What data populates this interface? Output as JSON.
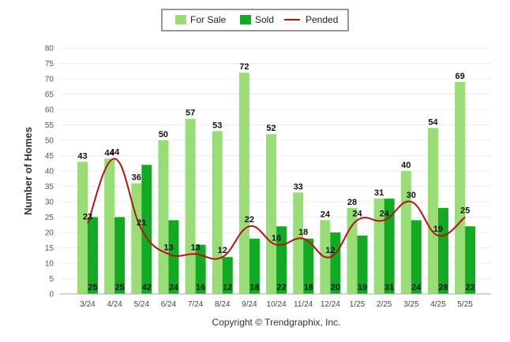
{
  "chart_data": {
    "type": "bar",
    "title": "",
    "xlabel": "",
    "ylabel": "Number of Homes",
    "ylim": [
      0,
      80
    ],
    "yticks": [
      0,
      5,
      10,
      15,
      20,
      25,
      30,
      35,
      40,
      45,
      50,
      55,
      60,
      65,
      70,
      75,
      80
    ],
    "grid": true,
    "legend_position": "top-center",
    "categories": [
      "3/24",
      "4/24",
      "5/24",
      "6/24",
      "7/24",
      "8/24",
      "9/24",
      "10/24",
      "11/24",
      "12/24",
      "1/25",
      "2/25",
      "3/25",
      "4/25",
      "5/25"
    ],
    "series": [
      {
        "name": "For Sale",
        "type": "bar",
        "color": "#99dd77",
        "values": [
          43,
          44,
          36,
          50,
          57,
          53,
          72,
          52,
          33,
          24,
          28,
          31,
          40,
          54,
          69
        ]
      },
      {
        "name": "Sold",
        "type": "bar",
        "color": "#11aa22",
        "values": [
          25,
          25,
          42,
          24,
          16,
          12,
          18,
          22,
          18,
          20,
          19,
          31,
          24,
          28,
          22
        ]
      },
      {
        "name": "Pended",
        "type": "line",
        "color": "#bb1111",
        "values": [
          23,
          44,
          21,
          13,
          13,
          12,
          22,
          16,
          18,
          12,
          24,
          24,
          30,
          19,
          25
        ]
      }
    ]
  },
  "footer": {
    "copyright": "Copyright © Trendgraphix, Inc."
  }
}
